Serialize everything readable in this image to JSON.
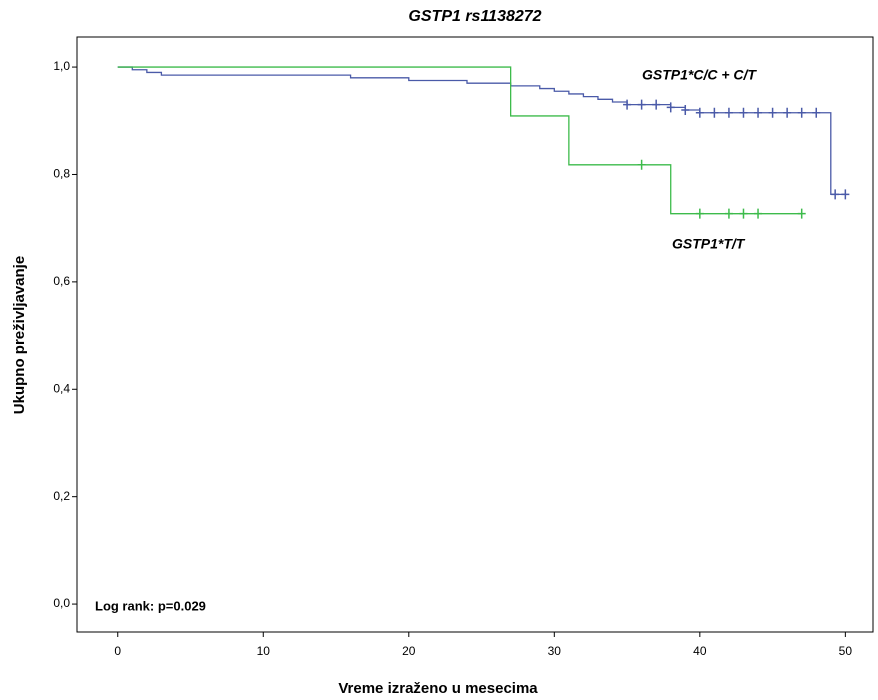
{
  "chart_data": {
    "type": "step",
    "title": "GSTP1 rs1138272",
    "xlabel": "Vreme izraženo u mesecima",
    "ylabel": "Ukupno preživljavanje",
    "annotation": "Log rank: p=0.029",
    "xlim": [
      -2.8,
      51.9
    ],
    "ylim": [
      -0.052,
      1.056
    ],
    "xticks": [
      0,
      10,
      20,
      30,
      40,
      50
    ],
    "yticks": [
      {
        "value": 0.0,
        "label": "0,0"
      },
      {
        "value": 0.2,
        "label": "0,2"
      },
      {
        "value": 0.4,
        "label": "0,4"
      },
      {
        "value": 0.6,
        "label": "0,6"
      },
      {
        "value": 0.8,
        "label": "0,8"
      },
      {
        "value": 1.0,
        "label": "1,0"
      }
    ],
    "series": [
      {
        "name": "GSTP1*C/C + C/T",
        "color": "#4a5aa8",
        "x": [
          0,
          1,
          2,
          3,
          16,
          20,
          24,
          27,
          29,
          30,
          31,
          32,
          33,
          34,
          35,
          38,
          39,
          40,
          49,
          50
        ],
        "values": [
          1.0,
          0.995,
          0.99,
          0.985,
          0.98,
          0.975,
          0.97,
          0.965,
          0.96,
          0.955,
          0.95,
          0.945,
          0.94,
          0.935,
          0.93,
          0.925,
          0.92,
          0.915,
          0.763,
          0.763
        ],
        "censor_x": [
          35,
          36,
          37,
          38,
          39,
          40,
          41,
          42,
          43,
          44,
          45,
          46,
          47,
          48,
          49.3,
          50
        ],
        "censor_values": [
          0.93,
          0.93,
          0.93,
          0.925,
          0.92,
          0.915,
          0.915,
          0.915,
          0.915,
          0.915,
          0.915,
          0.915,
          0.915,
          0.915,
          0.763,
          0.763
        ]
      },
      {
        "name": "GSTP1*T/T",
        "color": "#3dbb4b",
        "x": [
          0,
          27,
          31,
          38,
          47
        ],
        "values": [
          1.0,
          0.909,
          0.818,
          0.727,
          0.727
        ],
        "censor_x": [
          36,
          40,
          42,
          43,
          44,
          47
        ],
        "censor_values": [
          0.818,
          0.727,
          0.727,
          0.727,
          0.727,
          0.727
        ]
      }
    ]
  }
}
